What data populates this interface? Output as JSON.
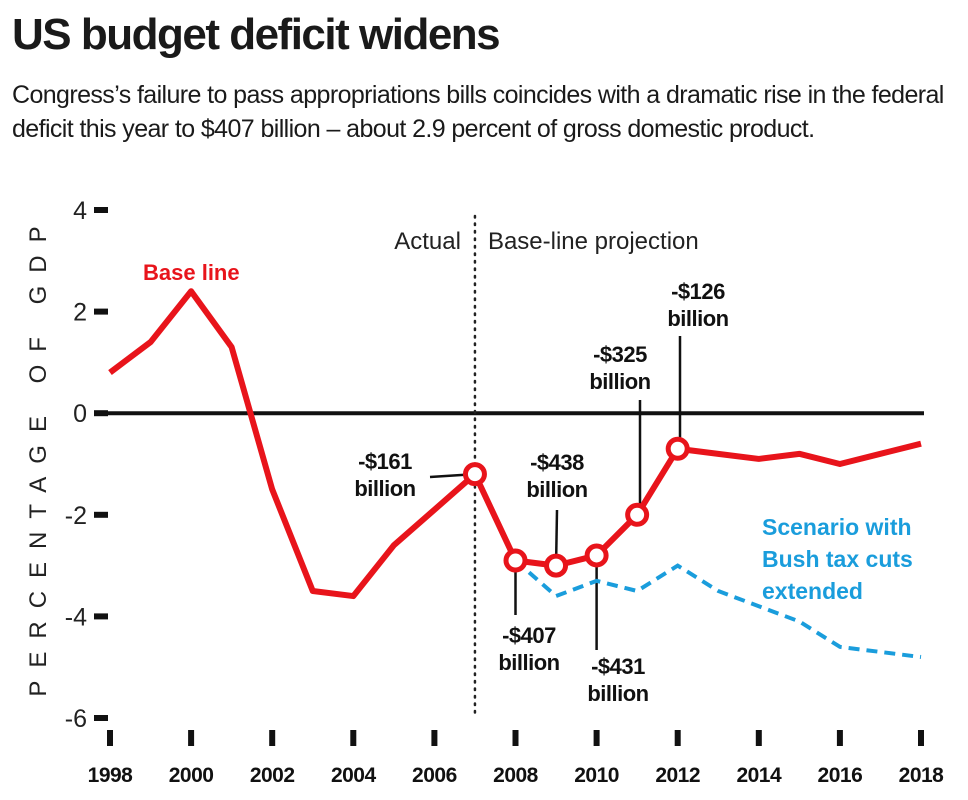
{
  "header": {
    "title": "US budget deficit widens",
    "subtitle": "Congress’s failure to pass appropriations bills coincides with a dramatic rise in the federal deficit this year to $407 billion – about 2.9 percent of gross domestic product."
  },
  "chart_data": {
    "type": "line",
    "title": "US budget deficit widens",
    "xlabel": "",
    "ylabel": "PERCENTAGE OF GDP",
    "x": [
      1998,
      1999,
      2000,
      2001,
      2002,
      2003,
      2004,
      2005,
      2006,
      2007,
      2008,
      2009,
      2010,
      2011,
      2012,
      2013,
      2014,
      2015,
      2016,
      2017,
      2018
    ],
    "xlim": [
      1998,
      2018
    ],
    "ylim": [
      -6,
      4
    ],
    "x_ticks": [
      1998,
      2000,
      2002,
      2004,
      2006,
      2008,
      2010,
      2012,
      2014,
      2016,
      2018
    ],
    "y_ticks": [
      4,
      2,
      0,
      -2,
      -4,
      -6
    ],
    "grid": false,
    "zero_line": true,
    "divider": {
      "x": 2007,
      "left_label": "Actual",
      "right_label": "Base-line projection"
    },
    "series": [
      {
        "name": "Base line",
        "color": "#e8141b",
        "style": "solid",
        "values": [
          0.8,
          1.4,
          2.4,
          1.3,
          -1.5,
          -3.5,
          -3.6,
          -2.6,
          -1.9,
          -1.2,
          -2.9,
          -3.0,
          -2.8,
          -2.0,
          -0.7,
          -0.8,
          -0.9,
          -0.8,
          -1.0,
          -0.8,
          -0.6
        ]
      },
      {
        "name": "Scenario with Bush tax cuts extended",
        "label_lines": [
          "Scenario with",
          "Bush tax cuts",
          "extended"
        ],
        "color": "#1a9ddc",
        "style": "dashed",
        "x": [
          2008,
          2009,
          2010,
          2011,
          2012,
          2013,
          2014,
          2015,
          2016,
          2017,
          2018
        ],
        "values": [
          -2.9,
          -3.6,
          -3.3,
          -3.5,
          -3.0,
          -3.5,
          -3.8,
          -4.1,
          -4.6,
          -4.7,
          -4.8
        ]
      }
    ],
    "annotations": [
      {
        "year": 2007,
        "value": -1.2,
        "lines": [
          "-$161",
          "billion"
        ],
        "position": "left"
      },
      {
        "year": 2008,
        "value": -2.9,
        "lines": [
          "-$407",
          "billion"
        ],
        "position": "below"
      },
      {
        "year": 2009,
        "value": -3.0,
        "lines": [
          "-$438",
          "billion"
        ],
        "position": "above"
      },
      {
        "year": 2010,
        "value": -2.8,
        "lines": [
          "-$431",
          "billion"
        ],
        "position": "below"
      },
      {
        "year": 2011,
        "value": -2.0,
        "lines": [
          "-$325",
          "billion"
        ],
        "position": "above"
      },
      {
        "year": 2012,
        "value": -0.7,
        "lines": [
          "-$126",
          "billion"
        ],
        "position": "above"
      }
    ]
  }
}
